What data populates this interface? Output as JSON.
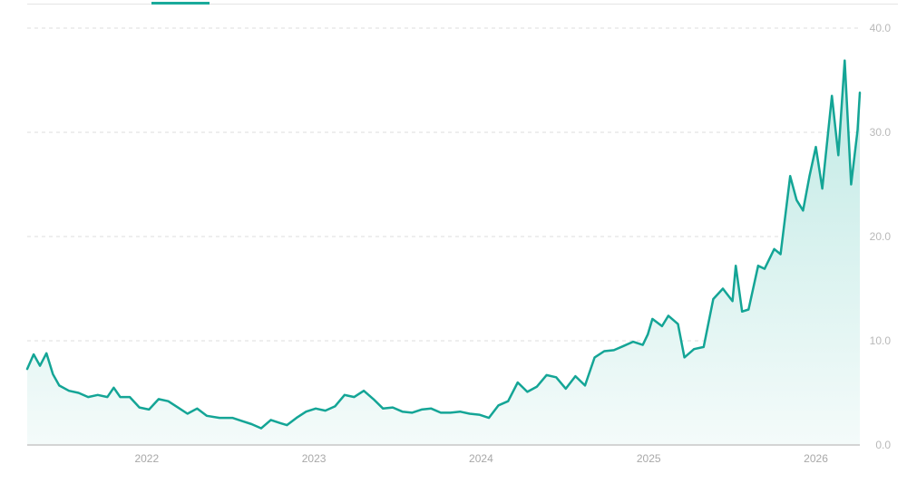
{
  "colors": {
    "line": "#14a596",
    "fill_top": "#bfe9e4",
    "fill_bottom": "#f4fbfa",
    "grid": "#dcdcdc",
    "axis": "#d4d4d4",
    "tab_indicator": "#1aaa9b"
  },
  "chart_data": {
    "type": "area",
    "title": "",
    "xlabel": "",
    "ylabel": "",
    "ylim": [
      0,
      40
    ],
    "yticks": [
      "0.0",
      "10.0",
      "20.0",
      "30.0",
      "40.0"
    ],
    "xticks": [
      "2022",
      "2023",
      "2024",
      "2025",
      "2026"
    ],
    "xlim": [
      "2021-04-15",
      "2026-04-07"
    ],
    "grid": true,
    "series": [
      {
        "values": [
          [
            "2021-04-15",
            7.3
          ],
          [
            "2021-04-29",
            8.7
          ],
          [
            "2021-05-13",
            7.6
          ],
          [
            "2021-05-27",
            8.8
          ],
          [
            "2021-06-10",
            6.8
          ],
          [
            "2021-06-24",
            5.7
          ],
          [
            "2021-07-15",
            5.2
          ],
          [
            "2021-08-05",
            5.0
          ],
          [
            "2021-08-26",
            4.6
          ],
          [
            "2021-09-16",
            4.8
          ],
          [
            "2021-10-07",
            4.6
          ],
          [
            "2021-10-21",
            5.5
          ],
          [
            "2021-11-04",
            4.6
          ],
          [
            "2021-11-25",
            4.6
          ],
          [
            "2021-12-16",
            3.6
          ],
          [
            "2022-01-06",
            3.4
          ],
          [
            "2022-01-27",
            4.4
          ],
          [
            "2022-02-17",
            4.2
          ],
          [
            "2022-03-10",
            3.6
          ],
          [
            "2022-03-31",
            3.0
          ],
          [
            "2022-04-21",
            3.5
          ],
          [
            "2022-05-12",
            2.8
          ],
          [
            "2022-06-09",
            2.6
          ],
          [
            "2022-07-07",
            2.6
          ],
          [
            "2022-07-28",
            2.3
          ],
          [
            "2022-08-18",
            2.0
          ],
          [
            "2022-09-08",
            1.6
          ],
          [
            "2022-09-29",
            2.4
          ],
          [
            "2022-10-20",
            2.1
          ],
          [
            "2022-11-03",
            1.9
          ],
          [
            "2022-11-24",
            2.6
          ],
          [
            "2022-12-15",
            3.2
          ],
          [
            "2023-01-05",
            3.5
          ],
          [
            "2023-01-26",
            3.3
          ],
          [
            "2023-02-16",
            3.7
          ],
          [
            "2023-03-09",
            4.8
          ],
          [
            "2023-03-30",
            4.6
          ],
          [
            "2023-04-20",
            5.2
          ],
          [
            "2023-05-11",
            4.4
          ],
          [
            "2023-06-01",
            3.5
          ],
          [
            "2023-06-22",
            3.6
          ],
          [
            "2023-07-13",
            3.2
          ],
          [
            "2023-08-03",
            3.1
          ],
          [
            "2023-08-24",
            3.4
          ],
          [
            "2023-09-14",
            3.5
          ],
          [
            "2023-10-05",
            3.1
          ],
          [
            "2023-10-26",
            3.1
          ],
          [
            "2023-11-16",
            3.2
          ],
          [
            "2023-12-07",
            3.0
          ],
          [
            "2023-12-28",
            2.9
          ],
          [
            "2024-01-18",
            2.6
          ],
          [
            "2024-02-08",
            3.8
          ],
          [
            "2024-02-29",
            4.2
          ],
          [
            "2024-03-21",
            6.0
          ],
          [
            "2024-04-11",
            5.1
          ],
          [
            "2024-05-02",
            5.6
          ],
          [
            "2024-05-23",
            6.7
          ],
          [
            "2024-06-13",
            6.5
          ],
          [
            "2024-07-04",
            5.4
          ],
          [
            "2024-07-25",
            6.6
          ],
          [
            "2024-08-15",
            5.7
          ],
          [
            "2024-09-05",
            8.4
          ],
          [
            "2024-09-26",
            9.0
          ],
          [
            "2024-10-17",
            9.1
          ],
          [
            "2024-11-07",
            9.5
          ],
          [
            "2024-11-28",
            9.9
          ],
          [
            "2024-12-19",
            9.6
          ],
          [
            "2024-12-30",
            10.6
          ],
          [
            "2025-01-09",
            12.1
          ],
          [
            "2025-01-30",
            11.4
          ],
          [
            "2025-02-13",
            12.4
          ],
          [
            "2025-03-06",
            11.6
          ],
          [
            "2025-03-20",
            8.4
          ],
          [
            "2025-04-10",
            9.2
          ],
          [
            "2025-05-01",
            9.4
          ],
          [
            "2025-05-22",
            14.0
          ],
          [
            "2025-06-12",
            15.0
          ],
          [
            "2025-07-03",
            13.8
          ],
          [
            "2025-07-10",
            17.2
          ],
          [
            "2025-07-24",
            12.8
          ],
          [
            "2025-08-07",
            13.0
          ],
          [
            "2025-08-28",
            17.2
          ],
          [
            "2025-09-11",
            16.9
          ],
          [
            "2025-10-02",
            18.8
          ],
          [
            "2025-10-16",
            18.3
          ],
          [
            "2025-11-06",
            25.8
          ],
          [
            "2025-11-20",
            23.5
          ],
          [
            "2025-12-04",
            22.5
          ],
          [
            "2025-12-18",
            25.8
          ],
          [
            "2026-01-01",
            28.6
          ],
          [
            "2026-01-15",
            24.6
          ],
          [
            "2026-02-05",
            33.5
          ],
          [
            "2026-02-19",
            27.8
          ],
          [
            "2026-03-05",
            36.9
          ],
          [
            "2026-03-19",
            25.0
          ],
          [
            "2026-04-02",
            30.2
          ],
          [
            "2026-04-07",
            33.8
          ]
        ]
      }
    ]
  }
}
